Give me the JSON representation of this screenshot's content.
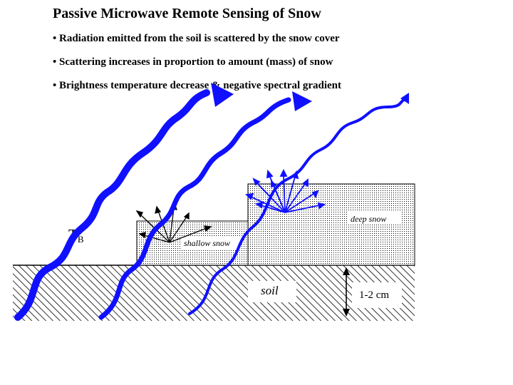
{
  "title": "Passive Microwave Remote Sensing of Snow",
  "bullets": [
    "• Radiation emitted from the soil is scattered by the snow cover",
    "• Scattering increases in proportion to amount (mass) of snow",
    "• Brightness temperature decrease & negative spectral gradient"
  ],
  "labels": {
    "tb_main": "T",
    "tb_sub": "B",
    "shallow_snow": "shallow snow",
    "deep_snow": "deep snow",
    "soil": "soil",
    "thickness": "1-2 cm"
  },
  "colors": {
    "arrow": "#1010ff",
    "line": "#000000",
    "background": "#ffffff"
  }
}
